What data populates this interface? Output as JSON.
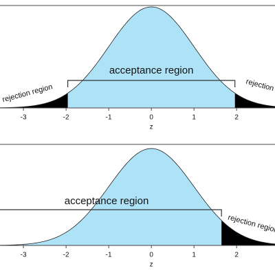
{
  "chart_data": [
    {
      "type": "normal-distribution",
      "xlabel": "z",
      "xlim": [
        -3.55,
        2.9
      ],
      "xticks": [
        -3,
        -2,
        -1,
        0,
        1,
        2
      ],
      "tail": "two",
      "critical_values": [
        -1.96,
        1.96
      ],
      "annotations": [
        "acceptance region",
        "rejection region",
        "rejection"
      ],
      "colors": {
        "acceptance": "#aee3f7",
        "rejection": "#000000"
      }
    },
    {
      "type": "normal-distribution",
      "xlabel": "z",
      "xlim": [
        -3.55,
        2.9
      ],
      "xticks": [
        -3,
        -2,
        -1,
        0,
        1,
        2
      ],
      "tail": "right",
      "critical_values": [
        1.645
      ],
      "annotations": [
        "acceptance region",
        "rejection region"
      ],
      "colors": {
        "acceptance": "#aee3f7",
        "rejection": "#000000"
      }
    }
  ]
}
